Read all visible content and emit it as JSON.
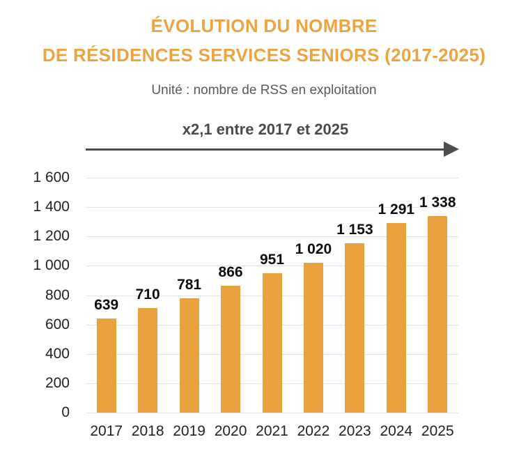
{
  "header": {
    "title_line1": "ÉVOLUTION DU NOMBRE",
    "title_line2": "DE RÉSIDENCES SERVICES SENIORS (2017-2025)",
    "subtitle": "Unité : nombre de RSS en exploitation"
  },
  "annotation": {
    "text": "x2,1 entre 2017 et 2025"
  },
  "chart_data": {
    "type": "bar",
    "title": "ÉVOLUTION DU NOMBRE DE RÉSIDENCES SERVICES SENIORS (2017-2025)",
    "subtitle": "Unité : nombre de RSS en exploitation",
    "annotation": "x2,1 entre 2017 et 2025",
    "categories": [
      "2017",
      "2018",
      "2019",
      "2020",
      "2021",
      "2022",
      "2023",
      "2024",
      "2025"
    ],
    "values": [
      639,
      710,
      781,
      866,
      951,
      1020,
      1153,
      1291,
      1338
    ],
    "value_labels": [
      "639",
      "710",
      "781",
      "866",
      "951",
      "1 020",
      "1 153",
      "1 291",
      "1 338"
    ],
    "xlabel": "",
    "ylabel": "",
    "ylim": [
      0,
      1600
    ],
    "ytick_values": [
      0,
      200,
      400,
      600,
      800,
      1000,
      1200,
      1400,
      1600
    ],
    "ytick_labels": [
      "0",
      "200",
      "400",
      "600",
      "800",
      "1 000",
      "1 200",
      "1 400",
      "1 600"
    ],
    "grid": true,
    "legend": "none"
  },
  "colors": {
    "bar_orange": "#E8A13C",
    "title_orange": "#ECA443",
    "axis_text": "#222222",
    "value_label": "#0D0D0D",
    "subtitle_gray": "#595959",
    "annotation_gray": "#4A4A4A",
    "arrow_gray": "#4D4D4D",
    "gridline": "#E2E2E2"
  }
}
